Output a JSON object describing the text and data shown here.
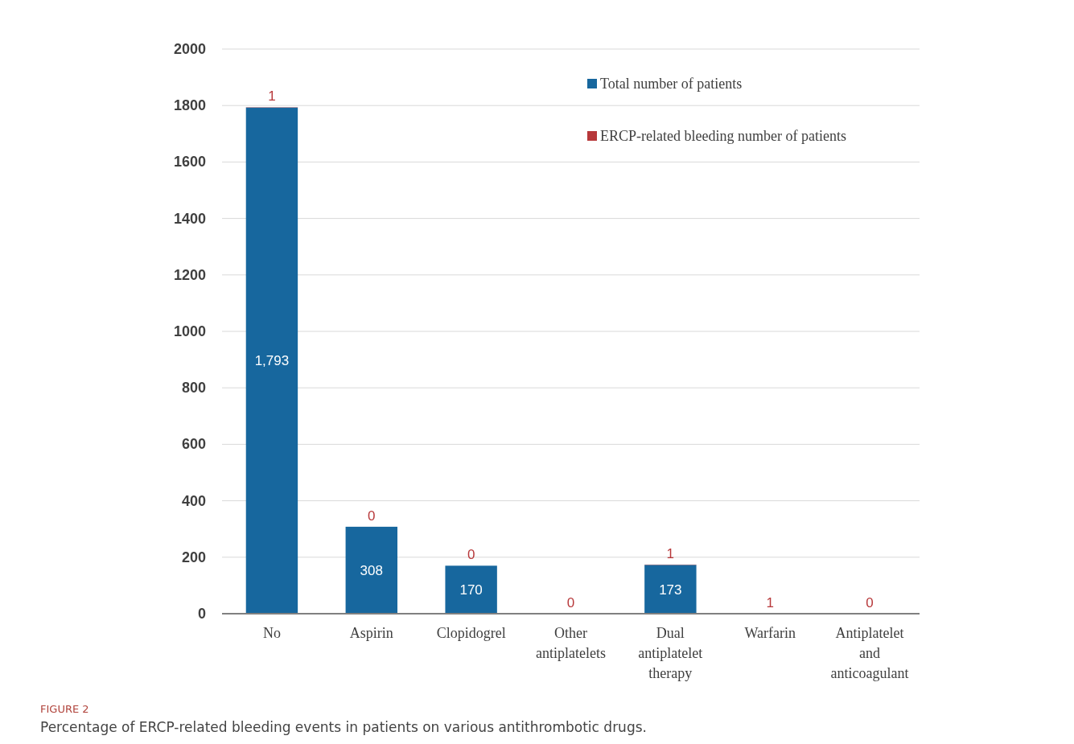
{
  "chart_data": {
    "type": "bar",
    "stacked": true,
    "categories": [
      "No",
      "Aspirin",
      "Clopidogrel",
      "Other antiplatelets",
      "Dual antiplatelet therapy",
      "Warfarin",
      "Antiplatelet and anticoagulant"
    ],
    "series": [
      {
        "name": "Total number of patients",
        "color": "#17679e",
        "values": [
          1793,
          308,
          170,
          null,
          173,
          null,
          null
        ],
        "value_labels": [
          "1,793",
          "308",
          "170",
          null,
          "173",
          null,
          null
        ]
      },
      {
        "name": "ERCP-related bleeding number of patients",
        "color": "#b7383a",
        "values": [
          1,
          0,
          0,
          0,
          1,
          1,
          0
        ],
        "value_labels": [
          "1",
          "0",
          "0",
          "0",
          "1",
          "1",
          "0"
        ]
      }
    ],
    "ylim": [
      0,
      2000
    ],
    "yticks": [
      0,
      200,
      400,
      600,
      800,
      1000,
      1200,
      1400,
      1600,
      1800,
      2000
    ],
    "grid": "y",
    "legend": "top right",
    "annotations": [
      "FIGURE 2",
      "Percentage of ERCP-related bleeding events in patients on various antithrombotic drugs."
    ]
  }
}
